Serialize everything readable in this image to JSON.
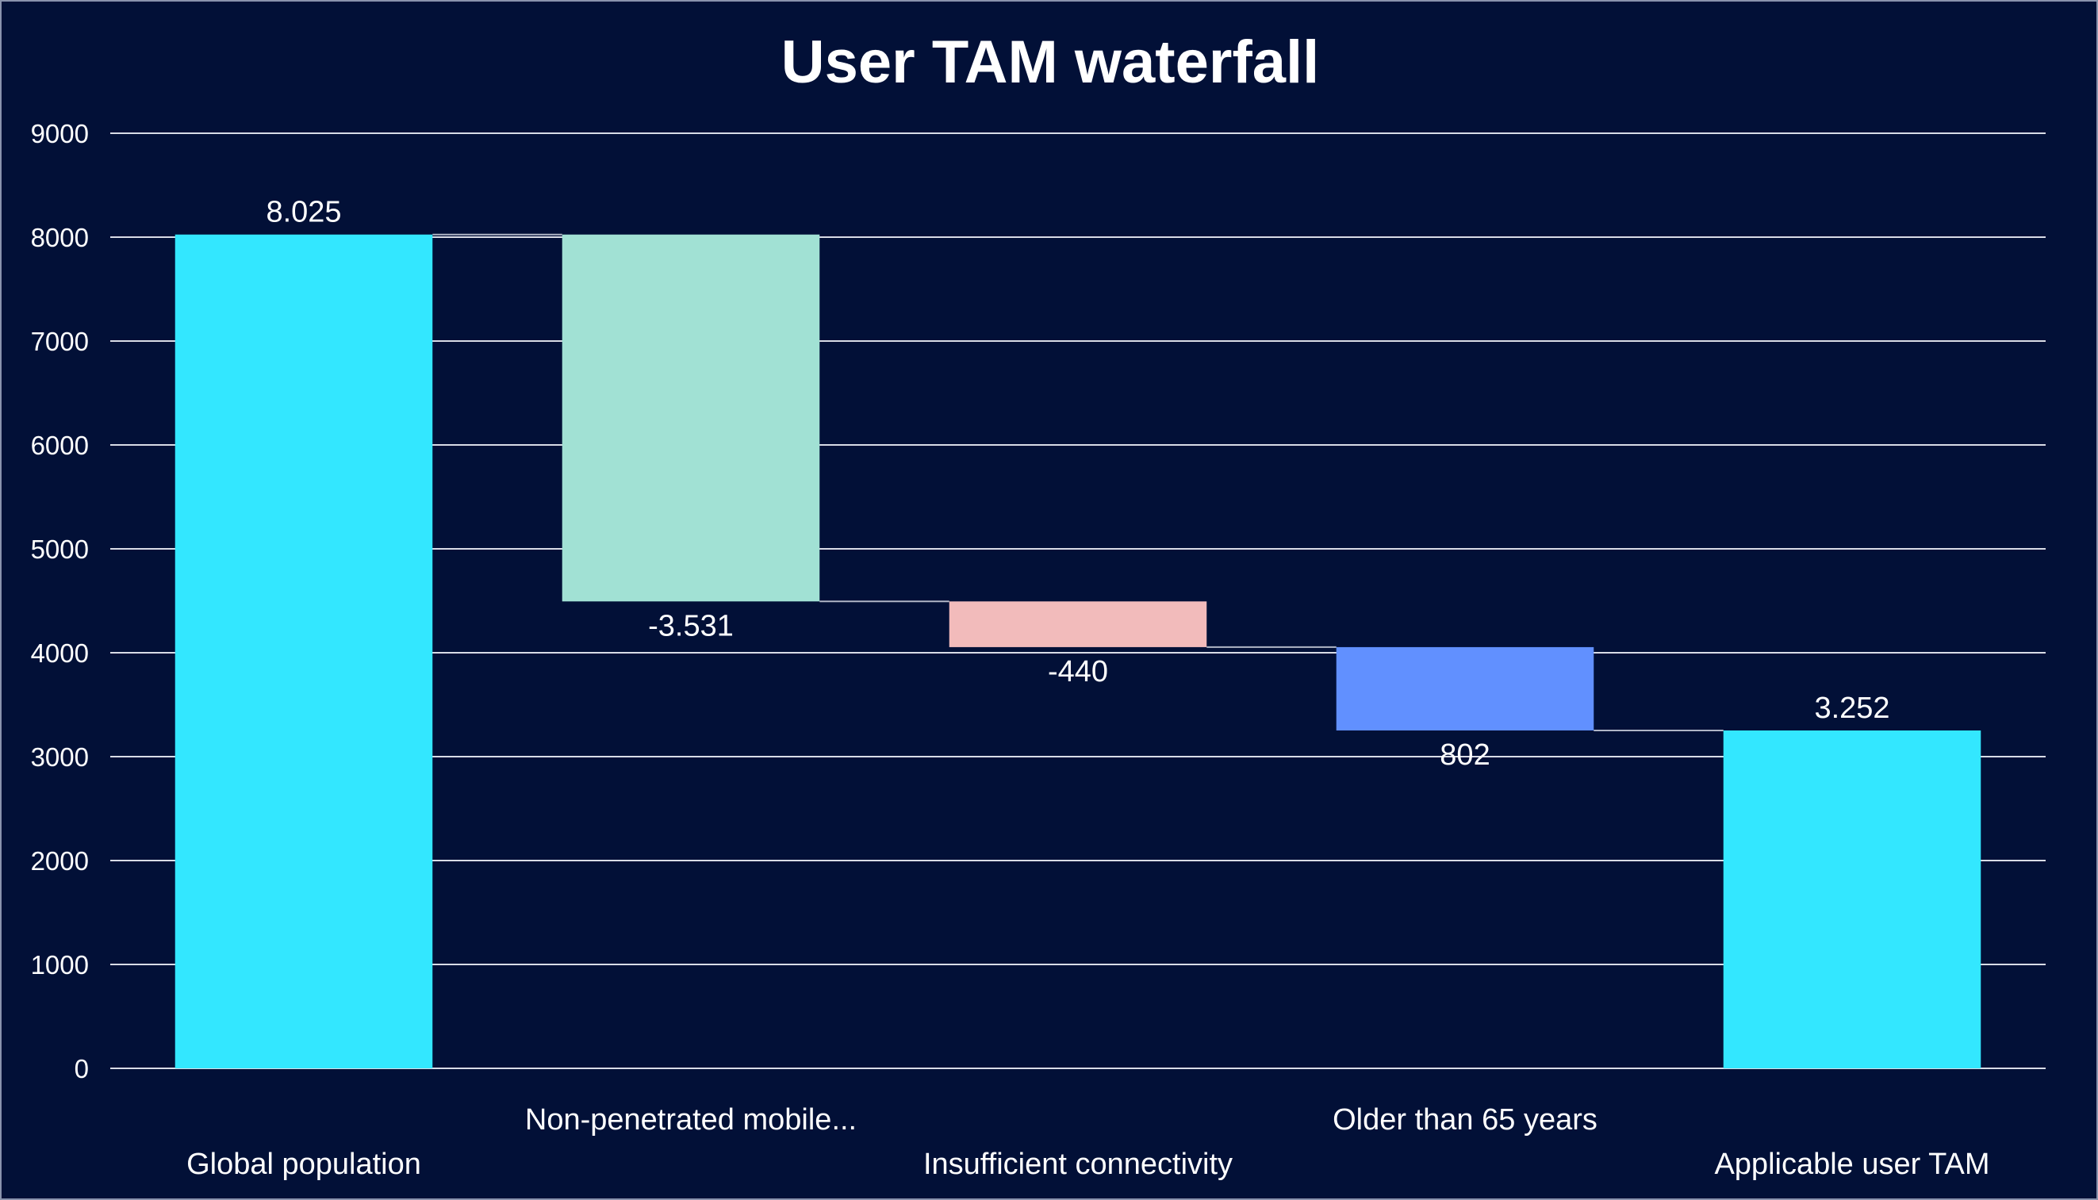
{
  "chart_data": {
    "type": "bar",
    "subtype": "waterfall",
    "title": "User TAM waterfall",
    "xlabel": "",
    "ylabel": "",
    "ylim": [
      0,
      9000
    ],
    "yticks": [
      0,
      1000,
      2000,
      3000,
      4000,
      5000,
      6000,
      7000,
      8000,
      9000
    ],
    "grid": true,
    "legend": "none",
    "categories": [
      "Global population",
      "Non-penetrated mobile...",
      "Insufficient connectivity",
      "Older than 65 years",
      "Applicable user TAM"
    ],
    "bars": [
      {
        "label": "8.025",
        "start": 0,
        "end": 8025,
        "color": "#33e7ff"
      },
      {
        "label": "-3.531",
        "start": 8025,
        "end": 4494,
        "color": "#a1e1d4"
      },
      {
        "label": "-440",
        "start": 4494,
        "end": 4054,
        "color": "#f2bbbb"
      },
      {
        "label": "802",
        "start": 4054,
        "end": 3252,
        "color": "#6190ff"
      },
      {
        "label": "3.252",
        "start": 0,
        "end": 3252,
        "color": "#33e7ff"
      }
    ],
    "colors": {
      "background": "#021037",
      "grid": "#d9dce6",
      "text": "#ffffff",
      "connector": "#b0b6c6"
    }
  }
}
